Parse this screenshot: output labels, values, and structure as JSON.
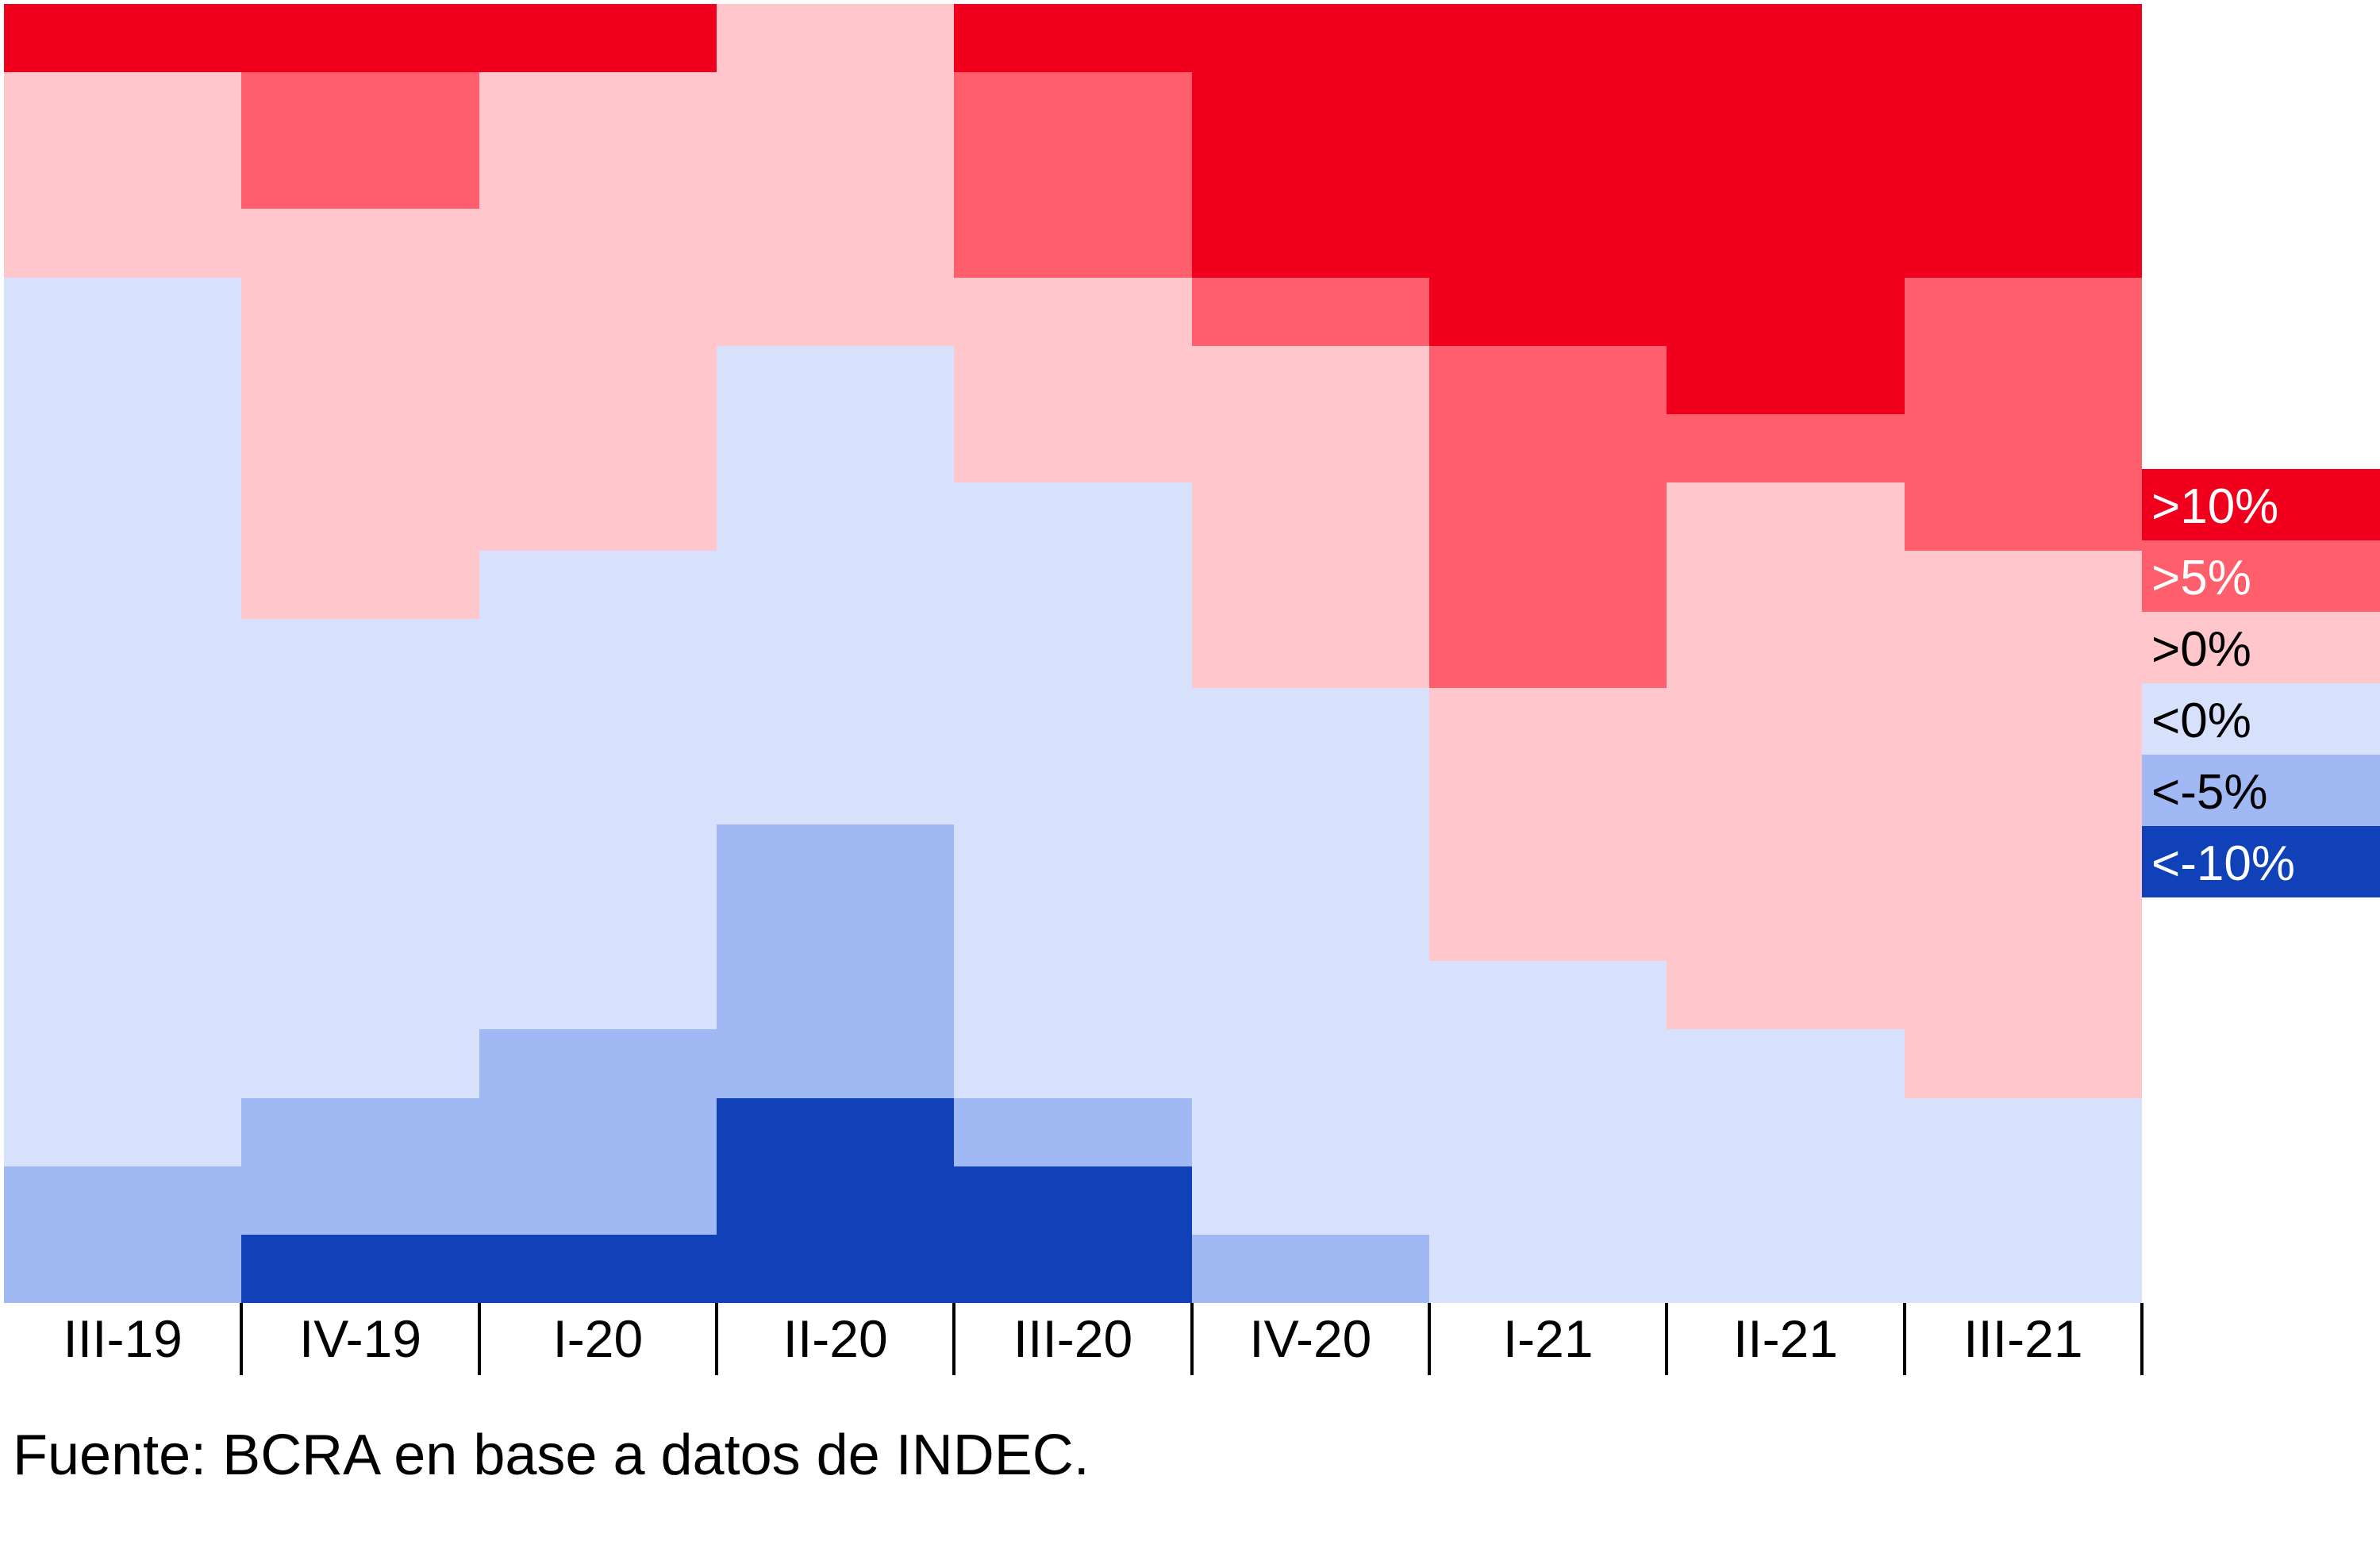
{
  "chart_data": {
    "type": "heatmap",
    "title": "",
    "xlabel": "",
    "ylabel": "",
    "categories": [
      "III-19",
      "IV-19",
      "I-20",
      "II-20",
      "III-20",
      "IV-20",
      "I-21",
      "II-21",
      "III-21"
    ],
    "rows": 19,
    "value_legend": [
      {
        "key": "p10",
        "label": ">10%",
        "color": "#f0001c",
        "text_color": "#ffffff"
      },
      {
        "key": "p5",
        "label": ">5%",
        "color": "#ff5f6c",
        "text_color": "#ffffff"
      },
      {
        "key": "p0",
        "label": ">0%",
        "color": "#ffc6cb",
        "text_color": "#000000"
      },
      {
        "key": "n0",
        "label": "<0%",
        "color": "#d8e1fb",
        "text_color": "#000000"
      },
      {
        "key": "n5",
        "label": "<-5%",
        "color": "#a0b8f4",
        "text_color": "#000000"
      },
      {
        "key": "n10",
        "label": "<-10%",
        "color": "#1041b9",
        "text_color": "#ffffff"
      }
    ],
    "columns": [
      {
        "category": "III-19",
        "counts": {
          "p10": 1,
          "p5": 0,
          "p0": 3,
          "n0": 13,
          "n5": 2,
          "n10": 0
        }
      },
      {
        "category": "IV-19",
        "counts": {
          "p10": 1,
          "p5": 2,
          "p0": 6,
          "n0": 7,
          "n5": 2,
          "n10": 1
        }
      },
      {
        "category": "I-20",
        "counts": {
          "p10": 1,
          "p5": 0,
          "p0": 7,
          "n0": 7,
          "n5": 3,
          "n10": 1
        }
      },
      {
        "category": "II-20",
        "counts": {
          "p10": 0,
          "p5": 0,
          "p0": 5,
          "n0": 7,
          "n5": 4,
          "n10": 3
        }
      },
      {
        "category": "III-20",
        "counts": {
          "p10": 1,
          "p5": 3,
          "p0": 3,
          "n0": 9,
          "n5": 1,
          "n10": 2
        }
      },
      {
        "category": "IV-20",
        "counts": {
          "p10": 4,
          "p5": 1,
          "p0": 5,
          "n0": 8,
          "n5": 1,
          "n10": 0
        }
      },
      {
        "category": "I-21",
        "counts": {
          "p10": 5,
          "p5": 5,
          "p0": 4,
          "n0": 5,
          "n5": 0,
          "n10": 0
        }
      },
      {
        "category": "II-21",
        "counts": {
          "p10": 6,
          "p5": 1,
          "p0": 8,
          "n0": 4,
          "n5": 0,
          "n10": 0
        }
      },
      {
        "category": "III-21",
        "counts": {
          "p10": 4,
          "p5": 4,
          "p0": 8,
          "n0": 3,
          "n5": 0,
          "n10": 0
        }
      }
    ],
    "grid": false,
    "legend_position": "right"
  },
  "source_note": "Fuente: BCRA en base a datos de INDEC."
}
